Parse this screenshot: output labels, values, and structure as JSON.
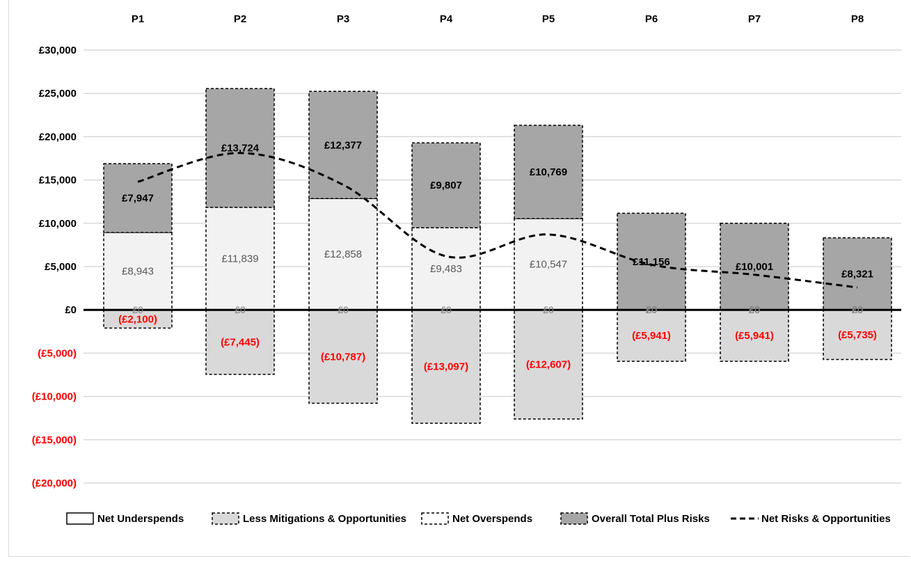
{
  "chart_data": {
    "type": "bar",
    "categories": [
      "P1",
      "P2",
      "P3",
      "P4",
      "P5",
      "P6",
      "P7",
      "P8"
    ],
    "ylim": [
      -20000,
      30000
    ],
    "y_ticks": [
      30000,
      25000,
      20000,
      15000,
      10000,
      5000,
      0,
      -5000,
      -10000,
      -15000,
      -20000
    ],
    "y_tick_labels": [
      "£30,000",
      "£25,000",
      "£20,000",
      "£15,000",
      "£10,000",
      "£5,000",
      "£0",
      "(£5,000)",
      "(£10,000)",
      "(£15,000)",
      "(£20,000)"
    ],
    "grid": true,
    "legend_position": "bottom",
    "series": [
      {
        "name": "Net Underspends",
        "values": [
          8943,
          11839,
          12858,
          9483,
          10547,
          0,
          0,
          0
        ],
        "labels": [
          "£8,943",
          "£11,839",
          "£12,858",
          "£9,483",
          "£10,547",
          "£0",
          "£0",
          "£0"
        ]
      },
      {
        "name": "Less Mitigations & Opportunities",
        "values": [
          -2100,
          -7445,
          -10787,
          -13097,
          -12607,
          -5941,
          -5941,
          -5735
        ],
        "labels": [
          "(£2,100)",
          "(£7,445)",
          "(£10,787)",
          "(£13,097)",
          "(£12,607)",
          "(£5,941)",
          "(£5,941)",
          "(£5,735)"
        ]
      },
      {
        "name": "Net Overspends",
        "values": [
          0,
          0,
          0,
          0,
          0,
          0,
          0,
          0
        ],
        "labels": [
          "£0",
          "£0",
          "£0",
          "£0",
          "£0",
          "£0",
          "£0",
          "£0"
        ]
      },
      {
        "name": "Overall Total Plus Risks",
        "values": [
          7947,
          13724,
          12377,
          9807,
          10769,
          11156,
          10001,
          8321
        ],
        "labels": [
          "£7,947",
          "£13,724",
          "£12,377",
          "£9,807",
          "£10,769",
          "£11,156",
          "£10,001",
          "£8,321"
        ]
      },
      {
        "name": "Net Risks & Opportunities",
        "values": [
          14790,
          18118,
          14448,
          6193,
          8709,
          5215,
          4060,
          2586
        ]
      }
    ],
    "colors": {
      "underspend": "#f2f2f2",
      "mitigation": "#d9d9d9",
      "overall": "#a6a6a6",
      "negative_text": "#ff0000",
      "axis": "#000000",
      "grid": "#d9d9d9"
    }
  }
}
